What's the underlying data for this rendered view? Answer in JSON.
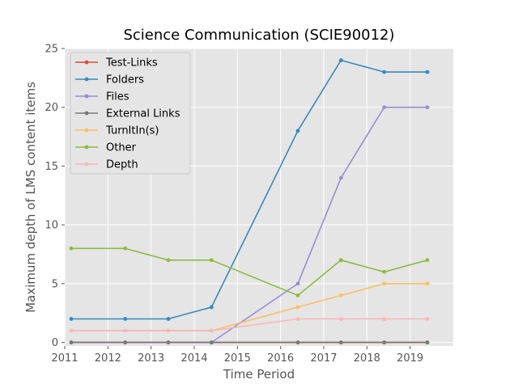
{
  "chart_data": {
    "type": "line",
    "title": "Science Communication (SCIE90012)",
    "xlabel": "Time Period",
    "ylabel": "Maximum depth of LMS content items",
    "xlim": [
      2011,
      2020
    ],
    "ylim": [
      -0.3,
      25
    ],
    "xticks": [
      2011,
      2012,
      2013,
      2014,
      2015,
      2016,
      2017,
      2018,
      2019
    ],
    "yticks": [
      0,
      5,
      10,
      15,
      20,
      25
    ],
    "grid": true,
    "legend_position": "top-left",
    "x": [
      2011.15,
      2012.4,
      2013.4,
      2014.4,
      2016.4,
      2017.4,
      2018.4,
      2019.4
    ],
    "series": [
      {
        "name": "Test-Links",
        "color": "#e24a33",
        "values": [
          0,
          0,
          0,
          0,
          0,
          0,
          0,
          0
        ]
      },
      {
        "name": "Folders",
        "color": "#348abd",
        "values": [
          2,
          2,
          2,
          3,
          18,
          24,
          23,
          23
        ]
      },
      {
        "name": "Files",
        "color": "#988ed5",
        "values": [
          0,
          0,
          0,
          0,
          5,
          14,
          20,
          20
        ]
      },
      {
        "name": "External Links",
        "color": "#777777",
        "values": [
          0,
          0,
          0,
          0,
          0,
          0,
          0,
          0
        ]
      },
      {
        "name": "TurnItIn(s)",
        "color": "#fbc15e",
        "values": [
          1,
          1,
          1,
          1,
          3,
          4,
          5,
          5
        ]
      },
      {
        "name": "Other",
        "color": "#8eba42",
        "values": [
          8,
          8,
          7,
          7,
          4,
          7,
          6,
          7
        ]
      },
      {
        "name": "Depth",
        "color": "#ffb5b8",
        "values": [
          1,
          1,
          1,
          1,
          2,
          2,
          2,
          2
        ]
      }
    ],
    "draw_order": [
      0,
      1,
      2,
      4,
      5,
      6,
      3
    ]
  }
}
